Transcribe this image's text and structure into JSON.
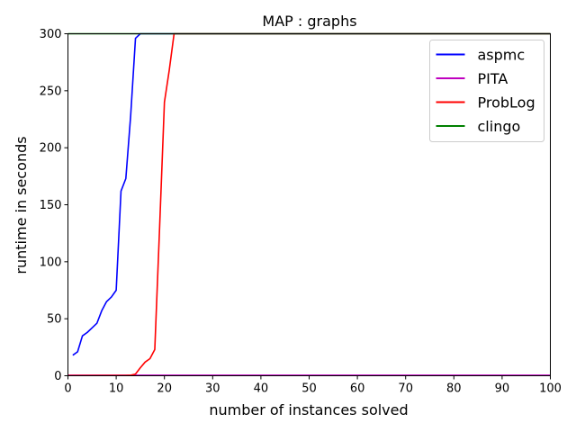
{
  "chart_data": {
    "type": "line",
    "title": "MAP : graphs",
    "xlabel": "number of instances solved",
    "ylabel": "runtime in seconds",
    "xlim": [
      0,
      100
    ],
    "ylim": [
      0,
      300
    ],
    "xticks": [
      0,
      10,
      20,
      30,
      40,
      50,
      60,
      70,
      80,
      90,
      100
    ],
    "yticks": [
      0,
      50,
      100,
      150,
      200,
      250,
      300
    ],
    "grid": false,
    "legend_position": "top-right",
    "series": [
      {
        "name": "aspmc",
        "color": "#0000ff",
        "x": [
          1,
          2,
          3,
          4,
          5,
          6,
          7,
          8,
          9,
          10,
          11,
          12,
          13,
          14,
          15,
          100
        ],
        "y": [
          18,
          21,
          35,
          38,
          42,
          46,
          57,
          65,
          69,
          75,
          162,
          173,
          228,
          296,
          300,
          300
        ]
      },
      {
        "name": "PITA",
        "color": "#bf00bf",
        "x": [
          0,
          100
        ],
        "y": [
          0.5,
          0.5
        ]
      },
      {
        "name": "ProbLog",
        "color": "#ff0000",
        "x": [
          0,
          12,
          13,
          14,
          15,
          16,
          17,
          18,
          19,
          20,
          21,
          22,
          100
        ],
        "y": [
          0.2,
          0.3,
          0.5,
          1.5,
          7,
          12,
          15,
          23,
          130,
          240,
          268,
          300,
          300
        ]
      },
      {
        "name": "clingo",
        "color": "#008000",
        "x": [
          0,
          100
        ],
        "y": [
          300,
          300
        ]
      }
    ]
  }
}
